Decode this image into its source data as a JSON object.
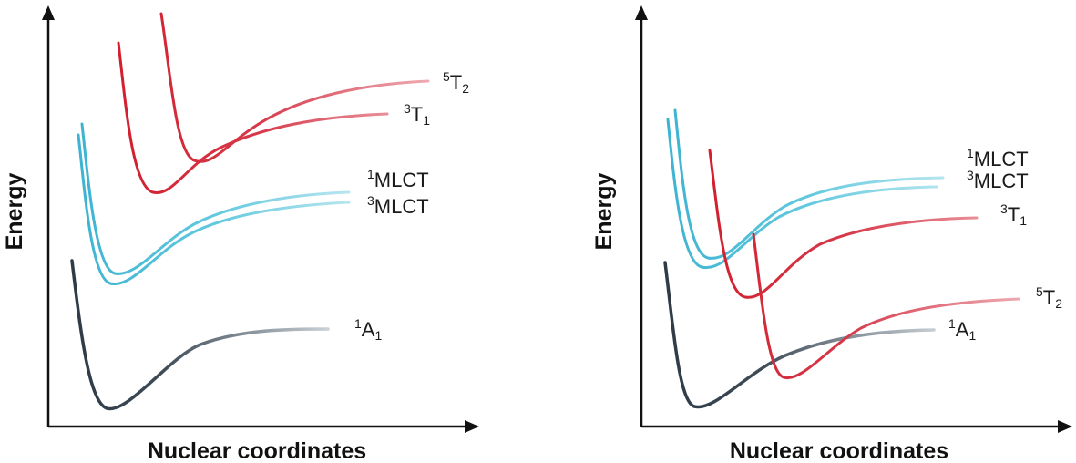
{
  "panels": [
    {
      "id": "left",
      "ylabel": "Energy",
      "xlabel": "Nuclear coordinates",
      "labels": [
        {
          "sup": "5",
          "main": "T",
          "sub": "2",
          "color": "#1a1a1a"
        },
        {
          "sup": "3",
          "main": "T",
          "sub": "1",
          "color": "#1a1a1a"
        },
        {
          "sup": "1",
          "main": "MLCT",
          "sub": "",
          "color": "#1a1a1a"
        },
        {
          "sup": "3",
          "main": "MLCT",
          "sub": "",
          "color": "#1a1a1a"
        },
        {
          "sup": "1",
          "main": "A",
          "sub": "1",
          "color": "#1a1a1a"
        }
      ]
    },
    {
      "id": "right",
      "ylabel": "Energy",
      "xlabel": "Nuclear coordinates",
      "labels": [
        {
          "sup": "1",
          "main": "MLCT",
          "sub": "",
          "color": "#1a1a1a"
        },
        {
          "sup": "3",
          "main": "MLCT",
          "sub": "",
          "color": "#1a1a1a"
        },
        {
          "sup": "3",
          "main": "T",
          "sub": "1",
          "color": "#1a1a1a"
        },
        {
          "sup": "5",
          "main": "T",
          "sub": "2",
          "color": "#1a1a1a"
        },
        {
          "sup": "1",
          "main": "A",
          "sub": "1",
          "color": "#1a1a1a"
        }
      ]
    }
  ],
  "colors": {
    "axis": "#111111",
    "ground": "#2e3b47",
    "mlct": "#4bbfd6",
    "metal_centered": "#d21f2e"
  }
}
